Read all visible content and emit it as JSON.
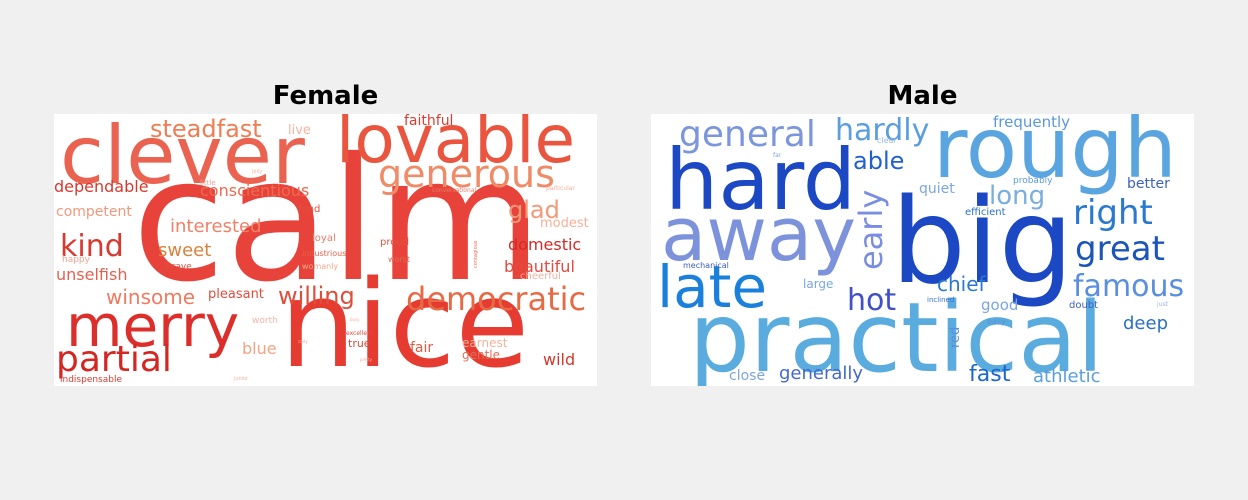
{
  "female": {
    "title": "Female",
    "words": [
      {
        "text": "calm",
        "color": "#e8433a"
      },
      {
        "text": "nice",
        "color": "#e53b30"
      },
      {
        "text": "clever",
        "color": "#ea6350"
      },
      {
        "text": "lovable",
        "color": "#e9553e"
      },
      {
        "text": "merry",
        "color": "#dc2f2b"
      },
      {
        "text": "generous",
        "color": "#f08b67"
      },
      {
        "text": "partial",
        "color": "#d32722"
      },
      {
        "text": "democratic",
        "color": "#e86a45"
      },
      {
        "text": "willing",
        "color": "#df4d3b"
      },
      {
        "text": "steadfast",
        "color": "#f07d52"
      },
      {
        "text": "glad",
        "color": "#f29a78"
      },
      {
        "text": "kind",
        "color": "#d9382f"
      },
      {
        "text": "winsome",
        "color": "#f07a5f"
      },
      {
        "text": "sweet",
        "color": "#d8823b"
      },
      {
        "text": "interested",
        "color": "#f08068"
      },
      {
        "text": "conscientious",
        "color": "#ec6a50"
      },
      {
        "text": "dependable",
        "color": "#d8382d"
      },
      {
        "text": "domestic",
        "color": "#d32a25"
      },
      {
        "text": "beautiful",
        "color": "#e5493f"
      },
      {
        "text": "unselfish",
        "color": "#e36150"
      },
      {
        "text": "competent",
        "color": "#f2977c"
      },
      {
        "text": "modest",
        "color": "#f4b096"
      },
      {
        "text": "faithful",
        "color": "#dc3b2f"
      },
      {
        "text": "live",
        "color": "#f4b4a0"
      },
      {
        "text": "pleasant",
        "color": "#e04b3a"
      },
      {
        "text": "blue",
        "color": "#f2a481"
      },
      {
        "text": "wild",
        "color": "#d4372c"
      },
      {
        "text": "fair",
        "color": "#e15a45"
      },
      {
        "text": "gentle",
        "color": "#e56e58"
      },
      {
        "text": "earnest",
        "color": "#f4b39c"
      },
      {
        "text": "cheerful",
        "color": "#f4b0a0"
      },
      {
        "text": "true",
        "color": "#d94c3a"
      },
      {
        "text": "proud",
        "color": "#e2533f"
      },
      {
        "text": "loyal",
        "color": "#ea7b67"
      },
      {
        "text": "fond",
        "color": "#e05040"
      },
      {
        "text": "happy",
        "color": "#f3a394"
      },
      {
        "text": "brave",
        "color": "#e34d3e"
      },
      {
        "text": "worth",
        "color": "#f4b6a4"
      },
      {
        "text": "industrious",
        "color": "#e8604a"
      },
      {
        "text": "womanly",
        "color": "#f4a88c"
      },
      {
        "text": "worst",
        "color": "#e36a57"
      },
      {
        "text": "indispensable",
        "color": "#dc3a2e"
      },
      {
        "text": "little",
        "color": "#f3a090"
      },
      {
        "text": "jolly",
        "color": "#f4b39c"
      },
      {
        "text": "conversational",
        "color": "#e87a66"
      },
      {
        "text": "particular",
        "color": "#f4b09c"
      },
      {
        "text": "excellent",
        "color": "#e34d3e"
      },
      {
        "text": "contagious",
        "color": "#e8705e"
      },
      {
        "text": "junior",
        "color": "#f4b39c"
      },
      {
        "text": "daily",
        "color": "#f3a090"
      },
      {
        "text": "pretty",
        "color": "#f4b09c"
      },
      {
        "text": "busy",
        "color": "#f4b09c"
      }
    ]
  },
  "male": {
    "title": "Male",
    "words": [
      {
        "text": "big",
        "color": "#1c48c4"
      },
      {
        "text": "practical",
        "color": "#5aacde"
      },
      {
        "text": "hard",
        "color": "#1c48c4"
      },
      {
        "text": "rough",
        "color": "#5aa5e0"
      },
      {
        "text": "away",
        "color": "#7c93dc"
      },
      {
        "text": "late",
        "color": "#1a80dc"
      },
      {
        "text": "general",
        "color": "#7c96dc"
      },
      {
        "text": "hardly",
        "color": "#5a9ee0"
      },
      {
        "text": "great",
        "color": "#1c55b8"
      },
      {
        "text": "right",
        "color": "#2a78d0"
      },
      {
        "text": "famous",
        "color": "#5a8ee0"
      },
      {
        "text": "hot",
        "color": "#4050c8"
      },
      {
        "text": "early",
        "color": "#7a8ee0"
      },
      {
        "text": "able",
        "color": "#2060d0"
      },
      {
        "text": "long",
        "color": "#7aaede"
      },
      {
        "text": "chief",
        "color": "#2a78d0"
      },
      {
        "text": "fast",
        "color": "#1c66cc"
      },
      {
        "text": "athletic",
        "color": "#5aa0dc"
      },
      {
        "text": "generally",
        "color": "#4468cc"
      },
      {
        "text": "deep",
        "color": "#2a70c8"
      },
      {
        "text": "frequently",
        "color": "#5a98dc"
      },
      {
        "text": "quiet",
        "color": "#7aa6dc"
      },
      {
        "text": "better",
        "color": "#3a60c0"
      },
      {
        "text": "close",
        "color": "#7aa6dc"
      },
      {
        "text": "good",
        "color": "#7aa6e0"
      },
      {
        "text": "red",
        "color": "#5a8ed8"
      },
      {
        "text": "large",
        "color": "#7aa6e0"
      },
      {
        "text": "efficient",
        "color": "#2a70c8"
      },
      {
        "text": "probably",
        "color": "#5a98dc"
      },
      {
        "text": "doubt",
        "color": "#3a60c0"
      },
      {
        "text": "mechanical",
        "color": "#3a60c0"
      },
      {
        "text": "inclined",
        "color": "#3a70cc"
      },
      {
        "text": "easy",
        "color": "#5a90d8"
      },
      {
        "text": "clear",
        "color": "#9ab8e6"
      },
      {
        "text": "far",
        "color": "#7aa6e0"
      },
      {
        "text": "just",
        "color": "#9ab8e6"
      }
    ]
  }
}
